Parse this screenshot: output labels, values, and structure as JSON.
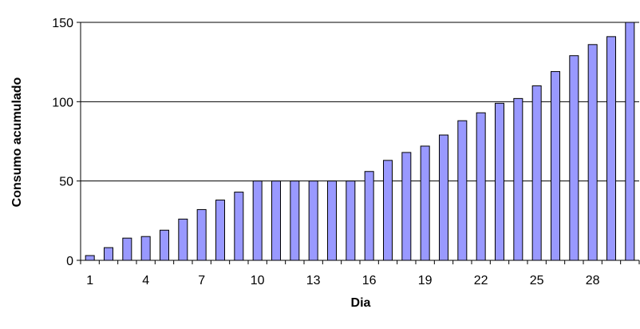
{
  "chart_data": {
    "type": "bar",
    "xlabel": "Dia",
    "ylabel": "Consumo acumulado",
    "categories": [
      "1",
      "2",
      "3",
      "4",
      "5",
      "6",
      "7",
      "8",
      "9",
      "10",
      "11",
      "12",
      "13",
      "14",
      "15",
      "16",
      "17",
      "18",
      "19",
      "20",
      "21",
      "22",
      "23",
      "24",
      "25",
      "26",
      "27",
      "28",
      "29",
      "30"
    ],
    "x_tick_labels": [
      "1",
      "4",
      "7",
      "10",
      "13",
      "16",
      "19",
      "22",
      "25",
      "28"
    ],
    "y_ticks": [
      0,
      50,
      100,
      150
    ],
    "ylim": [
      0,
      150
    ],
    "values": [
      3,
      8,
      14,
      15,
      19,
      26,
      32,
      38,
      43,
      50,
      50,
      50,
      50,
      50,
      50,
      56,
      63,
      68,
      72,
      79,
      88,
      93,
      99,
      102,
      110,
      119,
      129,
      136,
      141,
      150
    ],
    "grid": true,
    "legend": "none",
    "bar_color": "#9999ff"
  }
}
